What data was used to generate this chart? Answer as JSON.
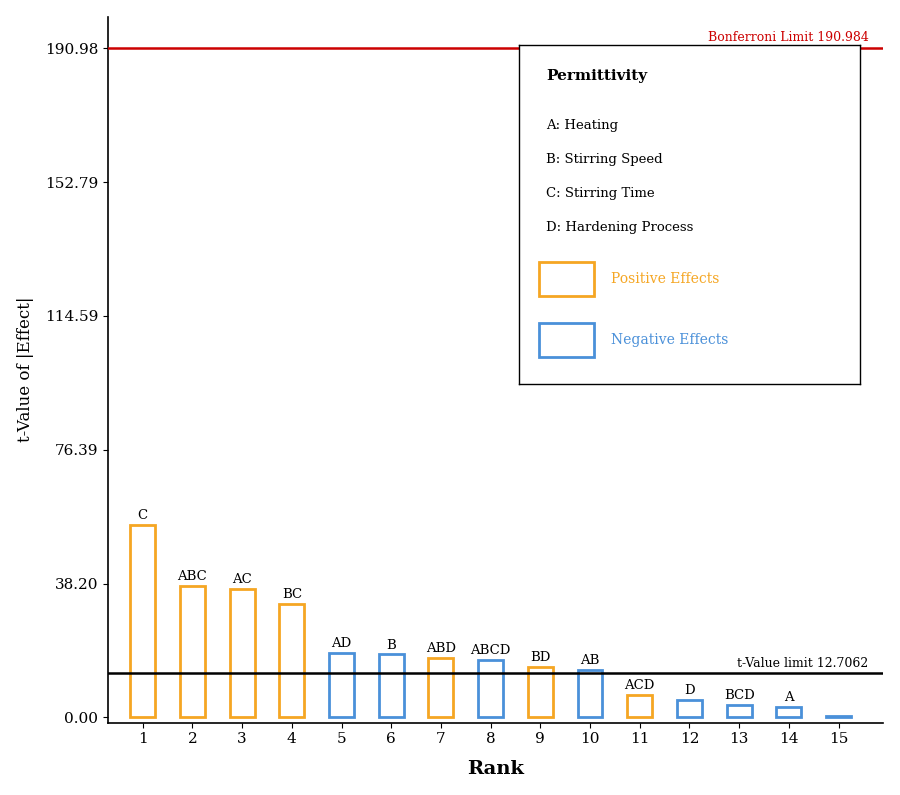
{
  "ranks": [
    1,
    2,
    3,
    4,
    5,
    6,
    7,
    8,
    9,
    10,
    11,
    12,
    13,
    14,
    15
  ],
  "labels": [
    "C",
    "ABC",
    "AC",
    "BC",
    "AD",
    "B",
    "ABD",
    "ABCD",
    "BD",
    "AB",
    "ACD",
    "D",
    "BCD",
    "A",
    ""
  ],
  "values": [
    55.0,
    37.5,
    36.8,
    32.5,
    18.5,
    18.0,
    17.0,
    16.5,
    14.5,
    13.5,
    6.5,
    5.0,
    3.5,
    3.0,
    0.5
  ],
  "colors": [
    "#F5A623",
    "#F5A623",
    "#F5A623",
    "#F5A623",
    "#4A90D9",
    "#4A90D9",
    "#F5A623",
    "#4A90D9",
    "#F5A623",
    "#4A90D9",
    "#F5A623",
    "#4A90D9",
    "#4A90D9",
    "#4A90D9",
    "#4A90D9"
  ],
  "bonferroni_limit": 190.984,
  "t_value_limit": 12.7062,
  "yticks": [
    0.0,
    38.2,
    76.39,
    114.59,
    152.79,
    190.98
  ],
  "ylabel": "t-Value of |Effect|",
  "xlabel": "Rank",
  "legend_title": "Permittivity",
  "legend_factors": [
    "A: Heating",
    "B: Stirring Speed",
    "C: Stirring Time",
    "D: Hardening Process"
  ],
  "positive_color": "#F5A623",
  "negative_color": "#4A90D9",
  "bonferroni_color": "#CC0000",
  "t_limit_color": "#000000",
  "background_color": "#FFFFFF",
  "plot_bg_color": "#FFFFFF"
}
